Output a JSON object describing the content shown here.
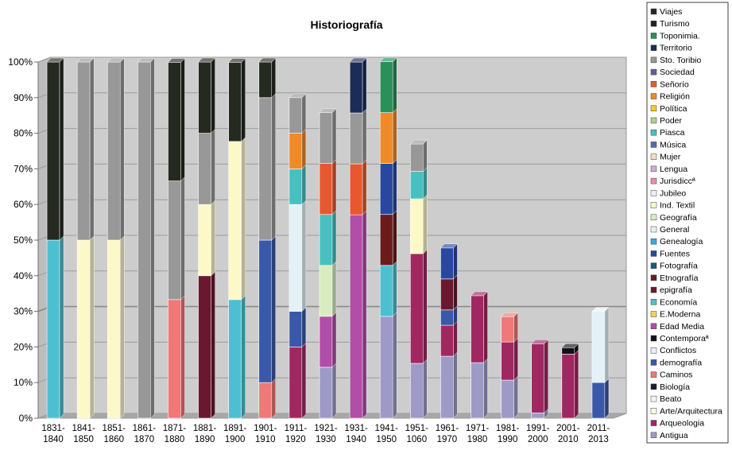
{
  "chart_data": {
    "type": "bar",
    "stacked": "percent",
    "title": "Historiografía",
    "ylim": [
      0,
      100
    ],
    "yticks": [
      "0%",
      "10%",
      "20%",
      "30%",
      "40%",
      "50%",
      "60%",
      "70%",
      "80%",
      "90%",
      "100%"
    ],
    "grid": true,
    "legend_position": "right",
    "categories": [
      [
        "1831-",
        "1840"
      ],
      [
        "1841-",
        "1850"
      ],
      [
        "1851-",
        "1860"
      ],
      [
        "1861-",
        "1870"
      ],
      [
        "1871-",
        "1880"
      ],
      [
        "1881-",
        "1890"
      ],
      [
        "1891-",
        "1900"
      ],
      [
        "1901-",
        "1910"
      ],
      [
        "1911-",
        "1920"
      ],
      [
        "1921-",
        "1930"
      ],
      [
        "1931-",
        "1940"
      ],
      [
        "1941-",
        "1950"
      ],
      [
        "1951-",
        "1060"
      ],
      [
        "1961-",
        "1970"
      ],
      [
        "1971-",
        "1980"
      ],
      [
        "1981-",
        "1990"
      ],
      [
        "1991-",
        "2000"
      ],
      [
        "2001-",
        "2010"
      ],
      [
        "2011-",
        "2013"
      ]
    ],
    "series": [
      {
        "name": "Antigua",
        "color": "#9e9ac8",
        "values": [
          0,
          0,
          0,
          0,
          0,
          0,
          0,
          0,
          0,
          14.3,
          0,
          28.6,
          15.4,
          17.4,
          15.6,
          10.7,
          1.5,
          0,
          0
        ]
      },
      {
        "name": "Arqueologia",
        "color": "#a02860",
        "values": [
          0,
          0,
          0,
          0,
          0,
          0,
          0,
          0,
          20,
          0,
          0,
          0,
          30.8,
          8.7,
          18.8,
          10.7,
          19.4,
          18,
          0
        ]
      },
      {
        "name": "Arte/Arquitectura",
        "color": "#fdfbe0",
        "values": [
          0,
          0,
          0,
          0,
          0,
          0,
          0,
          0,
          0,
          0,
          0,
          0,
          0,
          0,
          0,
          0,
          0,
          0,
          0
        ]
      },
      {
        "name": "Beato",
        "color": "#eef8fc",
        "values": [
          0,
          0,
          0,
          0,
          0,
          0,
          0,
          0,
          0,
          0,
          0,
          0,
          0,
          0,
          0,
          0,
          0,
          0,
          0
        ]
      },
      {
        "name": "Biología",
        "color": "#1a1a2a",
        "values": [
          0,
          0,
          0,
          0,
          0,
          0,
          0,
          0,
          0,
          0,
          0,
          0,
          0,
          0,
          0,
          0,
          0,
          0,
          0
        ]
      },
      {
        "name": "Caminos",
        "color": "#f07878",
        "values": [
          0,
          0,
          0,
          0,
          33.3,
          0,
          0,
          10,
          0,
          0,
          0,
          0,
          0,
          0,
          0,
          7.1,
          0,
          0,
          0
        ]
      },
      {
        "name": "demografía",
        "color": "#3a58a8",
        "values": [
          0,
          0,
          0,
          0,
          0,
          0,
          0,
          40,
          10,
          0,
          0,
          0,
          0,
          4.3,
          0,
          0,
          0,
          0,
          10
        ]
      },
      {
        "name": "Conflictos",
        "color": "#e8f2fa",
        "values": [
          0,
          0,
          0,
          0,
          0,
          0,
          0,
          0,
          0,
          0,
          0,
          0,
          0,
          0,
          0,
          0,
          0,
          0,
          0
        ]
      },
      {
        "name": "Contemporaª",
        "color": "#101018",
        "values": [
          0,
          0,
          0,
          0,
          0,
          0,
          0,
          0,
          0,
          0,
          0,
          0,
          0,
          0,
          0,
          0,
          0,
          1.8,
          0
        ]
      },
      {
        "name": "Edad Media",
        "color": "#b04ea8",
        "values": [
          0,
          0,
          0,
          0,
          0,
          0,
          0,
          0,
          0,
          14.3,
          57.1,
          0,
          0,
          0,
          0,
          0,
          0,
          0,
          0
        ]
      },
      {
        "name": "E.Moderna",
        "color": "#f5d060",
        "values": [
          0,
          0,
          0,
          0,
          0,
          0,
          0,
          0,
          0,
          0,
          0,
          0,
          0,
          0,
          0,
          0,
          0,
          0,
          0
        ]
      },
      {
        "name": "Economía",
        "color": "#4cc0d0",
        "values": [
          50,
          0,
          0,
          0,
          0,
          0,
          33.3,
          0,
          0,
          0,
          0,
          14.3,
          0,
          0,
          0,
          0,
          0,
          0,
          0
        ]
      },
      {
        "name": "epigrafía",
        "color": "#6a1830",
        "values": [
          0,
          0,
          0,
          0,
          0,
          40,
          0,
          0,
          0,
          0,
          0,
          0,
          0,
          8.7,
          0,
          0,
          0,
          0,
          0
        ]
      },
      {
        "name": "Etnografía",
        "color": "#6a1c1c",
        "values": [
          0,
          0,
          0,
          0,
          0,
          0,
          0,
          0,
          0,
          0,
          0,
          14.3,
          0,
          0,
          0,
          0,
          0,
          0,
          0
        ]
      },
      {
        "name": "Fotografía",
        "color": "#1c5a72",
        "values": [
          0,
          0,
          0,
          0,
          0,
          0,
          0,
          0,
          0,
          0,
          0,
          0,
          0,
          0,
          0,
          0,
          0,
          0,
          0
        ]
      },
      {
        "name": "Fuentes",
        "color": "#2848a0",
        "values": [
          0,
          0,
          0,
          0,
          0,
          0,
          0,
          0,
          0,
          0,
          0,
          14.3,
          0,
          8.7,
          0,
          0,
          0,
          0,
          0
        ]
      },
      {
        "name": "Genealogía",
        "color": "#38a8e0",
        "values": [
          0,
          0,
          0,
          0,
          0,
          0,
          0,
          0,
          0,
          0,
          0,
          0,
          0,
          0,
          0,
          0,
          0,
          0,
          0
        ]
      },
      {
        "name": "General",
        "color": "#e4f2f8",
        "values": [
          0,
          0,
          0,
          0,
          0,
          0,
          0,
          0,
          30,
          0,
          0,
          0,
          0,
          0,
          0,
          0,
          0,
          0,
          20
        ]
      },
      {
        "name": "Geografía",
        "color": "#d8ecc0",
        "values": [
          0,
          0,
          0,
          0,
          0,
          0,
          0,
          0,
          0,
          14.3,
          0,
          0,
          0,
          0,
          0,
          0,
          0,
          0,
          0
        ]
      },
      {
        "name": "Ind. Textil",
        "color": "#fcf8c8",
        "values": [
          0,
          50,
          50,
          0,
          0,
          20,
          44.4,
          0,
          0,
          0,
          0,
          0,
          15.4,
          0,
          0,
          0,
          0,
          0,
          0
        ]
      },
      {
        "name": "Jubileo",
        "color": "#f0f0fa",
        "values": [
          0,
          0,
          0,
          0,
          0,
          0,
          0,
          0,
          0,
          0,
          0,
          0,
          0,
          0,
          0,
          0,
          0,
          0,
          0
        ]
      },
      {
        "name": "Jurisdiccª",
        "color": "#f08aa8",
        "values": [
          0,
          0,
          0,
          0,
          0,
          0,
          0,
          0,
          0,
          0,
          0,
          0,
          0,
          0,
          0,
          0,
          0,
          0,
          0
        ]
      },
      {
        "name": "Lengua",
        "color": "#c8b0d8",
        "values": [
          0,
          0,
          0,
          0,
          0,
          0,
          0,
          0,
          0,
          0,
          0,
          0,
          0,
          0,
          0,
          0,
          0,
          0,
          0
        ]
      },
      {
        "name": "Mujer",
        "color": "#f8dcc0",
        "values": [
          0,
          0,
          0,
          0,
          0,
          0,
          0,
          0,
          0,
          0,
          0,
          0,
          0,
          0,
          0,
          0,
          0,
          0,
          0
        ]
      },
      {
        "name": "Música",
        "color": "#5868b8",
        "values": [
          0,
          0,
          0,
          0,
          0,
          0,
          0,
          0,
          0,
          0,
          0,
          0,
          0,
          0,
          0,
          0,
          0,
          0,
          0
        ]
      },
      {
        "name": "Piasca",
        "color": "#48c0c0",
        "values": [
          0,
          0,
          0,
          0,
          0,
          0,
          0,
          0,
          10,
          14.3,
          0,
          0,
          7.7,
          0,
          0,
          0,
          0,
          0,
          0
        ]
      },
      {
        "name": "Poder",
        "color": "#a8d488",
        "values": [
          0,
          0,
          0,
          0,
          0,
          0,
          0,
          0,
          0,
          0,
          0,
          0,
          0,
          0,
          0,
          0,
          0,
          0,
          0
        ]
      },
      {
        "name": "Política",
        "color": "#f8c828",
        "values": [
          0,
          0,
          0,
          0,
          0,
          0,
          0,
          0,
          0,
          0,
          0,
          0,
          0,
          0,
          0,
          0,
          0,
          0,
          0
        ]
      },
      {
        "name": "Religión",
        "color": "#f08a28",
        "values": [
          0,
          0,
          0,
          0,
          0,
          0,
          0,
          0,
          10,
          0,
          0,
          14.3,
          0,
          0,
          0,
          0,
          0,
          0,
          0
        ]
      },
      {
        "name": "Señorío",
        "color": "#e85830",
        "values": [
          0,
          0,
          0,
          0,
          0,
          0,
          0,
          0,
          0,
          14.3,
          14.3,
          0,
          0,
          0,
          0,
          0,
          0,
          0,
          0
        ]
      },
      {
        "name": "Sociedad",
        "color": "#6a5a98",
        "values": [
          0,
          0,
          0,
          0,
          0,
          0,
          0,
          0,
          0,
          0,
          0,
          0,
          0,
          0,
          0,
          0,
          0,
          0,
          0
        ]
      },
      {
        "name": "Sto. Toribio",
        "color": "#989898",
        "values": [
          0,
          50,
          50,
          100,
          33.3,
          20,
          0,
          40,
          10,
          14.3,
          14.3,
          0,
          7.7,
          0,
          0,
          0,
          0,
          0,
          0
        ]
      },
      {
        "name": "Territorio",
        "color": "#1c2c58",
        "values": [
          0,
          0,
          0,
          0,
          0,
          0,
          0,
          0,
          0,
          0,
          14.3,
          0,
          0,
          0,
          0,
          0,
          0,
          0,
          0
        ]
      },
      {
        "name": "Toponimia.",
        "color": "#289058",
        "values": [
          0,
          0,
          0,
          0,
          0,
          0,
          0,
          0,
          0,
          0,
          0,
          14.3,
          0,
          0,
          0,
          0,
          0,
          0,
          0
        ]
      },
      {
        "name": "Turismo",
        "color": "#202020",
        "values": [
          0,
          0,
          0,
          0,
          0,
          0,
          0,
          0,
          0,
          0,
          0,
          0,
          0,
          0,
          0,
          0,
          0,
          0,
          0
        ]
      },
      {
        "name": "Viajes",
        "color": "#242a20",
        "values": [
          50,
          0,
          0,
          0,
          33.3,
          20,
          22.2,
          10,
          0,
          0,
          0,
          0,
          0,
          0,
          0,
          0,
          0,
          0,
          0
        ]
      }
    ]
  }
}
